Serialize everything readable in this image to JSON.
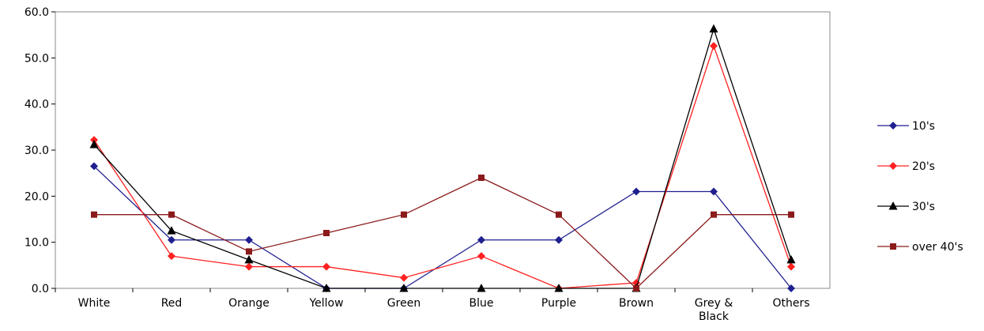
{
  "chart_data": {
    "type": "line",
    "categories": [
      "White",
      "Red",
      "Orange",
      "Yellow",
      "Green",
      "Blue",
      "Purple",
      "Brown",
      "Grey & Black",
      "Others"
    ],
    "ylim": [
      0,
      60
    ],
    "yticks": [
      "0.0",
      "10.0",
      "20.0",
      "30.0",
      "40.0",
      "50.0",
      "60.0"
    ],
    "grid": false,
    "legend_position": "right",
    "series": [
      {
        "name": "10's",
        "color": "#1F1F8F",
        "marker": "diamond",
        "values": [
          26.5,
          10.5,
          10.5,
          0.0,
          0.0,
          10.5,
          10.5,
          21.0,
          21.0,
          0.0
        ]
      },
      {
        "name": "20's",
        "color": "#FF2020",
        "marker": "diamond",
        "values": [
          32.2,
          7.0,
          4.7,
          4.7,
          2.3,
          7.0,
          0.0,
          1.2,
          52.6,
          4.7
        ]
      },
      {
        "name": "30's",
        "color": "#000000",
        "marker": "triangle",
        "values": [
          31.2,
          12.5,
          6.2,
          0.0,
          0.0,
          0.0,
          0.0,
          0.0,
          56.3,
          6.2
        ]
      },
      {
        "name": "over 40's",
        "color": "#8B1A1A",
        "marker": "square",
        "values": [
          16.0,
          16.0,
          8.0,
          12.0,
          16.0,
          24.0,
          16.0,
          0.0,
          16.0,
          16.0
        ]
      }
    ]
  }
}
